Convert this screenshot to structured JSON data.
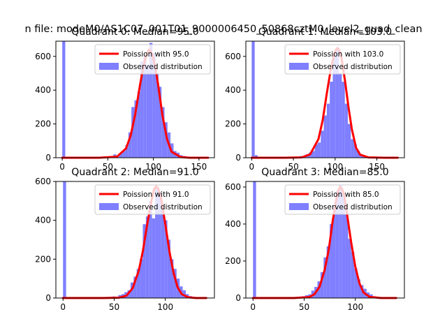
{
  "figure_title": "n file: modeM0/AS1C07_001T01_9000006450_50868cztM0_level2_quad_clean",
  "colors": {
    "fit_line": "#ff0000",
    "histogram": "#7f7fff",
    "axes": "#000000",
    "background": "#ffffff"
  },
  "chart_data": [
    {
      "type": "bar",
      "quadrant": 0,
      "title": "Quadrant 0: Median=95.0",
      "xlabel": "",
      "ylabel": "",
      "xlim": [
        -7,
        167
      ],
      "ylim": [
        0,
        690
      ],
      "xticks": [
        0,
        50,
        100,
        150
      ],
      "yticks": [
        0,
        200,
        400,
        600
      ],
      "legend": {
        "placement": "upper right",
        "entries": [
          "Poission with 95.0",
          "Observed distribution"
        ]
      },
      "poisson_mean": 95.0,
      "poisson_curve": {
        "x": [
          0,
          20,
          40,
          60,
          70,
          75,
          80,
          85,
          88,
          91,
          93,
          95,
          97,
          99,
          102,
          105,
          110,
          115,
          120,
          130,
          140,
          160
        ],
        "y": [
          0,
          0,
          0,
          6,
          55,
          130,
          255,
          420,
          510,
          585,
          615,
          640,
          630,
          605,
          540,
          440,
          250,
          110,
          35,
          4,
          0,
          0
        ]
      },
      "histogram": {
        "bin_width": 3.3,
        "bin_starts": [
          0,
          3.3,
          56.1,
          59.4,
          62.7,
          66.0,
          69.3,
          72.6,
          75.9,
          79.2,
          82.5,
          85.8,
          89.1,
          92.4,
          95.7,
          99.0,
          102.3,
          105.6,
          108.9,
          112.2,
          115.5,
          118.8,
          122.1,
          125.4,
          128.7,
          132.0,
          135.3,
          138.6
        ],
        "counts": [
          690,
          5,
          20,
          8,
          25,
          40,
          75,
          150,
          300,
          340,
          390,
          570,
          600,
          550,
          680,
          620,
          500,
          420,
          300,
          210,
          150,
          85,
          40,
          30,
          15,
          10,
          5,
          3
        ]
      }
    },
    {
      "type": "bar",
      "quadrant": 1,
      "title": "Quadrant 1: Median=103.0",
      "xlabel": "",
      "ylabel": "",
      "xlim": [
        -7,
        183
      ],
      "ylim": [
        0,
        690
      ],
      "xticks": [
        0,
        50,
        100,
        150
      ],
      "yticks": [
        0,
        200,
        400,
        600
      ],
      "legend": {
        "placement": "upper right",
        "entries": [
          "Poission with 103.0",
          "Observed distribution"
        ]
      },
      "poisson_mean": 103.0,
      "poisson_curve": {
        "x": [
          0,
          20,
          40,
          60,
          70,
          80,
          85,
          90,
          95,
          99,
          101,
          103,
          105,
          108,
          112,
          116,
          120,
          125,
          130,
          140,
          160,
          175
        ],
        "y": [
          0,
          0,
          0,
          2,
          20,
          110,
          220,
          380,
          530,
          615,
          640,
          650,
          635,
          580,
          450,
          300,
          170,
          60,
          18,
          2,
          0,
          0
        ]
      },
      "histogram": {
        "bin_width": 3.6,
        "bin_starts": [
          0,
          3.6,
          54.0,
          57.6,
          61.2,
          64.8,
          68.4,
          72.0,
          75.6,
          79.2,
          82.8,
          86.4,
          90.0,
          93.6,
          97.2,
          100.8,
          104.4,
          108.0,
          111.6,
          115.2,
          118.8,
          122.4,
          126.0,
          129.6,
          133.2,
          136.8,
          140.4,
          144.0
        ],
        "counts": [
          690,
          15,
          5,
          10,
          12,
          20,
          30,
          40,
          80,
          90,
          160,
          250,
          320,
          450,
          600,
          650,
          500,
          450,
          320,
          200,
          110,
          80,
          40,
          20,
          10,
          5,
          3,
          2
        ]
      }
    },
    {
      "type": "bar",
      "quadrant": 2,
      "title": "Quadrant 2: Median=91.0",
      "xlabel": "",
      "ylabel": "",
      "xlim": [
        -7,
        148
      ],
      "ylim": [
        0,
        600
      ],
      "xticks": [
        0,
        50,
        100
      ],
      "yticks": [
        0,
        200,
        400,
        600
      ],
      "legend": {
        "placement": "upper right",
        "entries": [
          "Poission with 91.0",
          "Observed distribution"
        ]
      },
      "poisson_mean": 91.0,
      "poisson_curve": {
        "x": [
          0,
          20,
          40,
          55,
          62,
          68,
          74,
          78,
          82,
          86,
          89,
          91,
          93,
          96,
          100,
          104,
          108,
          112,
          116,
          122,
          130,
          140
        ],
        "y": [
          0,
          0,
          0,
          2,
          12,
          50,
          140,
          240,
          370,
          490,
          560,
          575,
          565,
          510,
          380,
          240,
          130,
          55,
          20,
          4,
          0,
          0
        ]
      },
      "histogram": {
        "bin_width": 3.0,
        "bin_starts": [
          0,
          3.0,
          48.0,
          51.0,
          54.0,
          57.0,
          60.0,
          63.0,
          66.0,
          69.0,
          72.0,
          75.0,
          78.0,
          81.0,
          84.0,
          87.0,
          90.0,
          93.0,
          96.0,
          99.0,
          102.0,
          105.0,
          108.0,
          111.0,
          114.0,
          117.0,
          120.0,
          123.0
        ],
        "counts": [
          600,
          5,
          8,
          5,
          15,
          20,
          30,
          40,
          80,
          110,
          150,
          200,
          380,
          420,
          500,
          410,
          570,
          550,
          460,
          400,
          300,
          200,
          150,
          100,
          60,
          40,
          20,
          10
        ]
      }
    },
    {
      "type": "bar",
      "quadrant": 3,
      "title": "Quadrant 3: Median=85.0",
      "xlabel": "",
      "ylabel": "",
      "xlim": [
        -7,
        148
      ],
      "ylim": [
        0,
        630
      ],
      "xticks": [
        0,
        50,
        100
      ],
      "yticks": [
        0,
        200,
        400,
        600
      ],
      "legend": {
        "placement": "upper right",
        "entries": [
          "Poission with 85.0",
          "Observed distribution"
        ]
      },
      "poisson_mean": 85.0,
      "poisson_curve": {
        "x": [
          0,
          20,
          40,
          55,
          60,
          65,
          70,
          74,
          78,
          81,
          83,
          85,
          87,
          89,
          92,
          96,
          100,
          104,
          108,
          114,
          125,
          140
        ],
        "y": [
          0,
          0,
          0,
          5,
          20,
          60,
          150,
          260,
          420,
          520,
          575,
          600,
          590,
          560,
          450,
          300,
          170,
          80,
          30,
          6,
          0,
          0
        ]
      },
      "histogram": {
        "bin_width": 3.0,
        "bin_starts": [
          0,
          3.0,
          45.0,
          48.0,
          51.0,
          54.0,
          57.0,
          60.0,
          63.0,
          66.0,
          69.0,
          72.0,
          75.0,
          78.0,
          81.0,
          84.0,
          87.0,
          90.0,
          93.0,
          96.0,
          99.0,
          102.0,
          105.0,
          108.0,
          111.0,
          114.0,
          117.0,
          120.0
        ],
        "counts": [
          630,
          5,
          8,
          10,
          15,
          20,
          40,
          60,
          90,
          140,
          220,
          280,
          400,
          500,
          580,
          610,
          560,
          450,
          320,
          250,
          160,
          100,
          70,
          50,
          30,
          20,
          10,
          5
        ]
      }
    }
  ]
}
